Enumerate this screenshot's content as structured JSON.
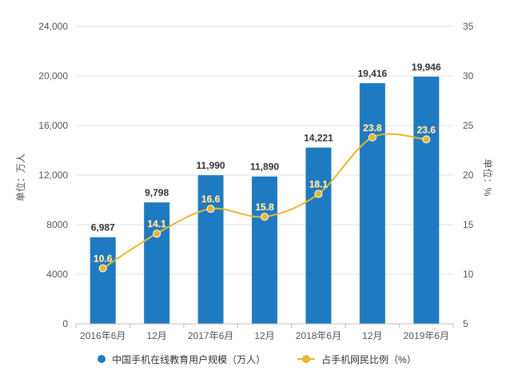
{
  "chart_data": {
    "type": "bar",
    "categories": [
      "2016年6月",
      "12月",
      "2017年6月",
      "12月",
      "2018年6月",
      "12月",
      "2019年6月"
    ],
    "series": [
      {
        "name": "中国手机在线教育用户规模（万人）",
        "type": "bar",
        "axis": "left",
        "values": [
          6987,
          9798,
          11990,
          11890,
          14221,
          19416,
          19946
        ],
        "labels": [
          "6,987",
          "9,798",
          "11,990",
          "11,890",
          "14,221",
          "19,416",
          "19,946"
        ],
        "color": "#1f7bc1"
      },
      {
        "name": "占手机网民比例（%）",
        "type": "line",
        "axis": "right",
        "values": [
          10.6,
          14.1,
          16.6,
          15.8,
          18.1,
          23.8,
          23.6
        ],
        "labels": [
          "10.6",
          "14.1",
          "16.6",
          "15.8",
          "18.1",
          "23.8",
          "23.6"
        ],
        "color": "#e8b530"
      }
    ],
    "y_left": {
      "label": "单位：万人",
      "range": [
        0,
        24000
      ],
      "ticks": [
        "0",
        "4000",
        "8000",
        "12,000",
        "16,000",
        "20,000",
        "24,000"
      ]
    },
    "y_right": {
      "label": "单位：%",
      "range": [
        5,
        35
      ],
      "ticks": [
        "5",
        "10",
        "15",
        "20",
        "25",
        "30",
        "35"
      ]
    },
    "grid": true,
    "legend_position": "bottom"
  }
}
